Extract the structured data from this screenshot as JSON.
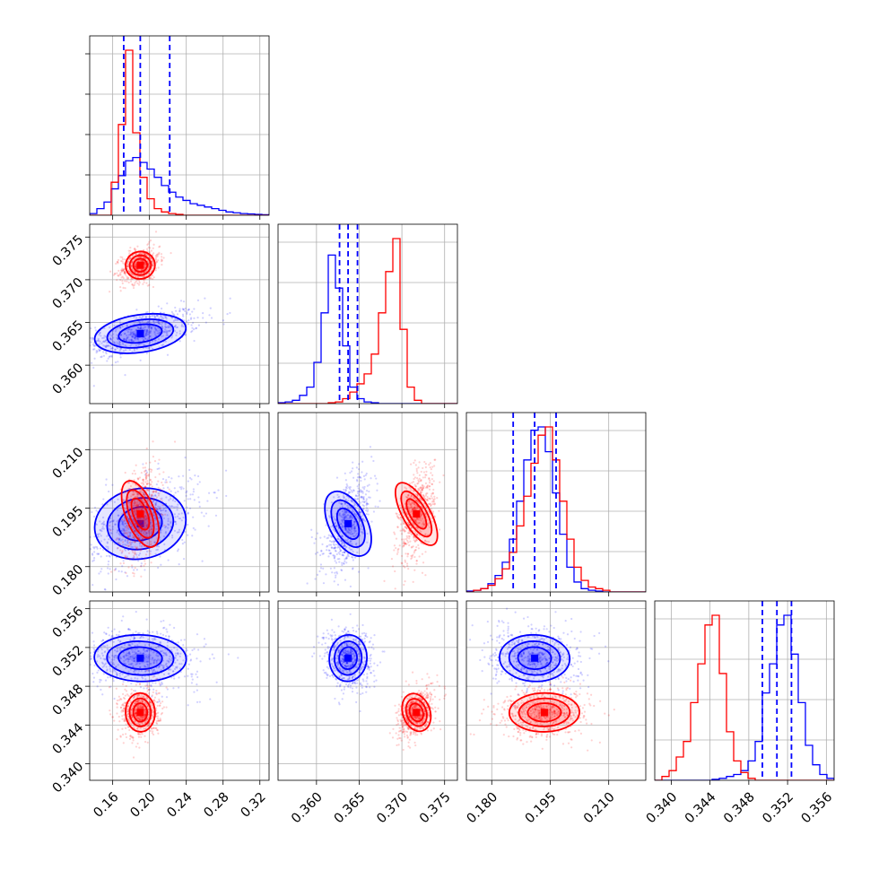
{
  "chart_data": {
    "type": "corner",
    "grid": true,
    "colors": {
      "series_a": "#0000ff",
      "series_b": "#ff0000"
    },
    "parameters": [
      {
        "ticks": [
          0.16,
          0.2,
          0.24,
          0.28,
          0.32
        ],
        "tick_labels": [
          "0.16",
          "0.20",
          "0.24",
          "0.28",
          "0.32"
        ],
        "range": [
          0.135,
          0.33
        ],
        "quantiles": [
          0.172,
          0.19,
          0.222
        ]
      },
      {
        "ticks": [
          0.36,
          0.365,
          0.37,
          0.375
        ],
        "tick_labels": [
          "0.360",
          "0.365",
          "0.370",
          "0.375"
        ],
        "range": [
          0.3555,
          0.3765
        ],
        "quantiles": [
          0.3627,
          0.3637,
          0.3648
        ]
      },
      {
        "ticks": [
          0.18,
          0.195,
          0.21
        ],
        "tick_labels": [
          "0.180",
          "0.195",
          "0.210"
        ],
        "range": [
          0.1735,
          0.2195
        ],
        "quantiles": [
          0.1855,
          0.191,
          0.1965
        ]
      },
      {
        "ticks": [
          0.34,
          0.344,
          0.348,
          0.352,
          0.356
        ],
        "tick_labels": [
          "0.340",
          "0.344",
          "0.348",
          "0.352",
          "0.356"
        ],
        "range": [
          0.3383,
          0.3568
        ],
        "quantiles": [
          0.3494,
          0.3509,
          0.3524
        ]
      }
    ],
    "series": [
      {
        "color": "#0000ff",
        "means": [
          0.19,
          0.3637,
          0.191,
          0.3509
        ],
        "sds": [
          0.025,
          0.0011,
          0.0045,
          0.0012
        ],
        "correlations": {
          "1,0": 0.6,
          "2,0": 0.45,
          "3,0": -0.1,
          "2,1": 0.55,
          "3,1": -0.1,
          "3,2": -0.1
        },
        "histograms": [
          {
            "edges": [
              0.135,
              0.3275
            ],
            "values": [
              1,
              4,
              8,
              16,
              24,
              33,
              35,
              32,
              28,
              23,
              18,
              14,
              11,
              9,
              7,
              6,
              5,
              4,
              3,
              2,
              1.5,
              1,
              0.8,
              0.5,
              0.3
            ]
          },
          {
            "edges": [
              0.3555,
              0.3765
            ],
            "values": [
              0.5,
              1,
              2,
              5,
              10,
              25,
              55,
              90,
              70,
              35,
              10,
              3,
              1,
              0.5,
              0,
              0,
              0,
              0,
              0,
              0,
              0,
              0,
              0,
              0,
              0
            ]
          },
          {
            "edges": [
              0.1735,
              0.2195
            ],
            "values": [
              0.5,
              1,
              2,
              5,
              10,
              18,
              32,
              55,
              80,
              98,
              100,
              85,
              60,
              35,
              15,
              6,
              2,
              1,
              0.5,
              0,
              0,
              0,
              0,
              0,
              0
            ]
          },
          {
            "edges": [
              0.3383,
              0.3568
            ],
            "values": [
              0,
              0,
              0,
              0,
              0,
              0,
              0,
              0,
              0.5,
              1,
              2,
              3,
              5,
              10,
              20,
              45,
              60,
              80,
              85,
              65,
              40,
              18,
              8,
              3,
              1
            ]
          }
        ]
      },
      {
        "color": "#ff0000",
        "means": [
          0.19,
          0.3717,
          0.1935,
          0.3453
        ],
        "sds": [
          0.008,
          0.0008,
          0.0045,
          0.001
        ],
        "correlations": {
          "1,0": 0.3,
          "2,0": 0.3,
          "3,0": 0.05,
          "2,1": 0.45,
          "3,1": 0.45,
          "3,2": 0.05
        },
        "histograms": [
          {
            "edges": [
              0.135,
              0.3275
            ],
            "values": [
              0,
              0,
              0,
              20,
              55,
              100,
              50,
              23,
              10,
              4,
              2,
              1,
              0.5,
              0,
              0,
              0,
              0,
              0,
              0,
              0,
              0,
              0,
              0,
              0,
              0
            ]
          },
          {
            "edges": [
              0.3555,
              0.3765
            ],
            "values": [
              0,
              0,
              0,
              0,
              0,
              0,
              0,
              0.5,
              1,
              3,
              7,
              12,
              18,
              30,
              55,
              80,
              100,
              45,
              10,
              2,
              0,
              0,
              0,
              0,
              0
            ]
          },
          {
            "edges": [
              0.1735,
              0.2195
            ],
            "values": [
              0,
              1,
              2,
              4,
              8,
              14,
              24,
              40,
              58,
              78,
              95,
              100,
              80,
              55,
              32,
              15,
              7,
              3,
              2,
              1,
              0,
              0,
              0,
              0,
              0
            ]
          },
          {
            "edges": [
              0.3383,
              0.3568
            ],
            "values": [
              0,
              2,
              5,
              12,
              20,
              40,
              60,
              80,
              85,
              55,
              25,
              10,
              4,
              1,
              0,
              0,
              0,
              0,
              0,
              0,
              0,
              0,
              0,
              0,
              0
            ]
          }
        ]
      }
    ]
  }
}
